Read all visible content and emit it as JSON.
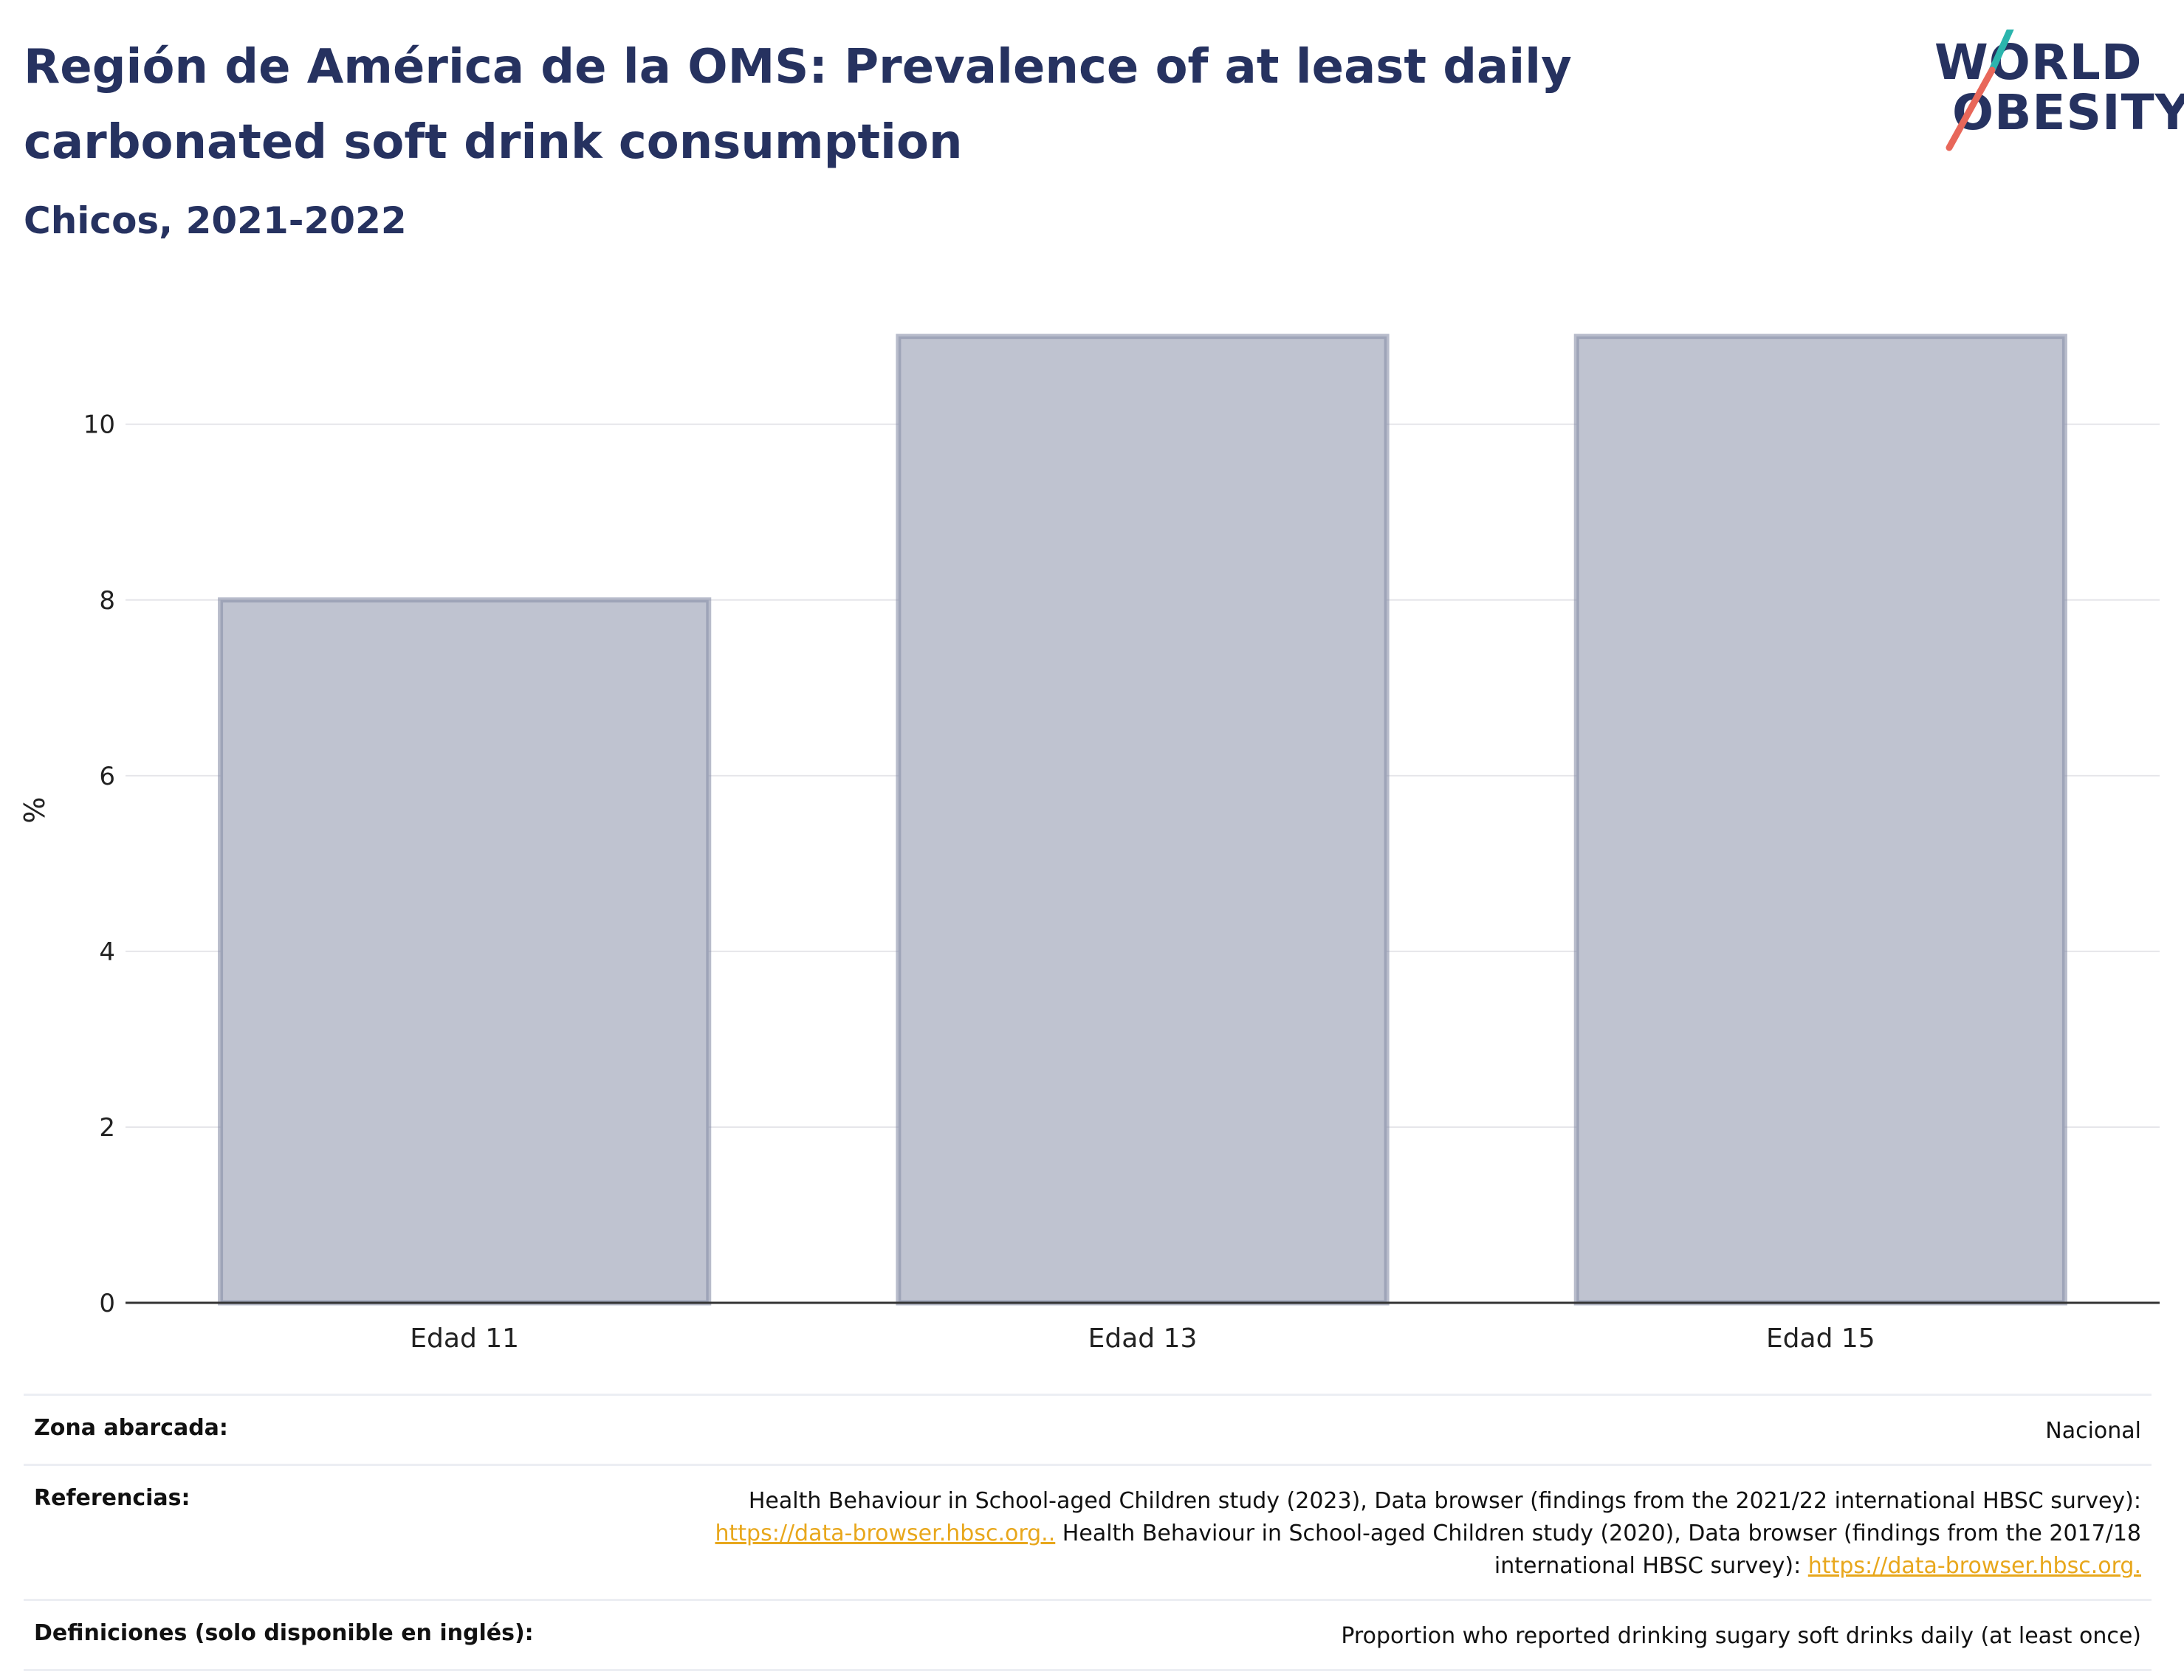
{
  "header": {
    "title": "Región de América de la OMS: Prevalence of at least daily carbonated soft drink consumption",
    "subtitle": "Chicos, 2021-2022"
  },
  "logo": {
    "line1": "WORLD",
    "line2": "OBESITY",
    "slash_teal": "#2bb5ad",
    "slash_coral": "#e8675a"
  },
  "chart_data": {
    "type": "bar",
    "categories": [
      "Edad 11",
      "Edad 13",
      "Edad 15"
    ],
    "values": [
      8,
      11,
      11
    ],
    "ylabel": "%",
    "ylim": [
      0,
      11.3
    ],
    "yticks": [
      0,
      2,
      4,
      6,
      8,
      10
    ],
    "grid": true,
    "bar_fill": "#bfc3d0",
    "bar_stroke": "#8990a8"
  },
  "footer": {
    "rows": [
      {
        "label": "Zona abarcada:",
        "value": "Nacional"
      },
      {
        "label": "Referencias:",
        "ref1_text": "Health Behaviour in School-aged Children study (2023), Data browser (findings from the 2021/22 international HBSC survey):",
        "ref1_link": "https://data-browser.hbsc.org..",
        "ref2_text": " Health Behaviour in School-aged Children study (2020), Data browser (findings from the 2017/18 international HBSC survey):",
        "ref2_link": "https://data-browser.hbsc.org."
      },
      {
        "label": "Definiciones (solo disponible en inglés):",
        "value": "Proportion who reported drinking sugary soft drinks daily (at least once)"
      }
    ]
  }
}
